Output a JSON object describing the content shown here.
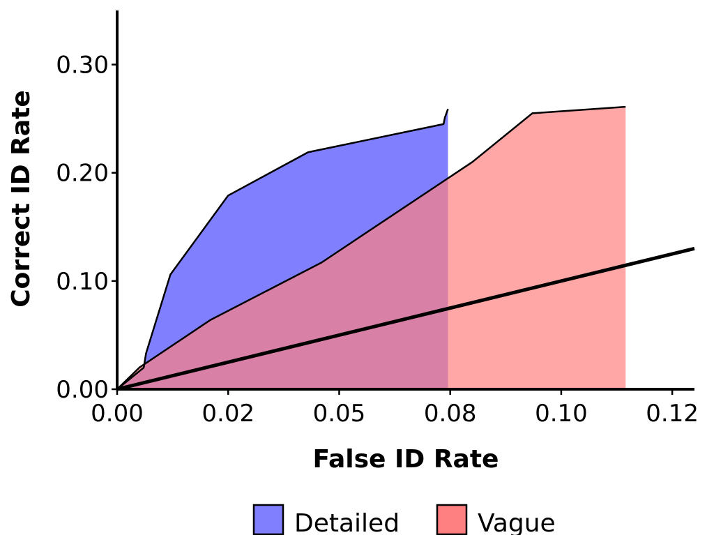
{
  "chart_data": {
    "type": "area",
    "title": "",
    "xlabel": "False ID Rate",
    "ylabel": "Correct ID Rate",
    "xlim": [
      0,
      0.13
    ],
    "ylim": [
      0,
      0.35
    ],
    "x_ticks": [
      {
        "value": 0.0,
        "label": "0.00"
      },
      {
        "value": 0.025,
        "label": "0.02"
      },
      {
        "value": 0.05,
        "label": "0.05"
      },
      {
        "value": 0.075,
        "label": "0.08"
      },
      {
        "value": 0.1,
        "label": "0.10"
      },
      {
        "value": 0.125,
        "label": "0.12"
      }
    ],
    "y_ticks": [
      {
        "value": 0.0,
        "label": "0.00"
      },
      {
        "value": 0.1,
        "label": "0.10"
      },
      {
        "value": 0.2,
        "label": "0.20"
      },
      {
        "value": 0.3,
        "label": "0.30"
      }
    ],
    "series": [
      {
        "name": "Detailed",
        "color": "#8080ff",
        "x": [
          0.0,
          0.006,
          0.0065,
          0.012,
          0.025,
          0.043,
          0.0735,
          0.0738,
          0.0745
        ],
        "y": [
          0.0,
          0.02,
          0.033,
          0.106,
          0.179,
          0.219,
          0.245,
          0.251,
          0.259
        ]
      },
      {
        "name": "Vague",
        "color": "#ff8080",
        "x": [
          0.0,
          0.005,
          0.021,
          0.046,
          0.08,
          0.0935,
          0.1145
        ],
        "y": [
          0.0,
          0.02,
          0.064,
          0.117,
          0.21,
          0.255,
          0.261
        ]
      }
    ],
    "chance_line": {
      "x": [
        0.0,
        0.13
      ],
      "y": [
        0.0,
        0.13
      ]
    },
    "legend": {
      "position": "bottom",
      "entries": [
        "Detailed",
        "Vague"
      ]
    },
    "grid": false
  }
}
